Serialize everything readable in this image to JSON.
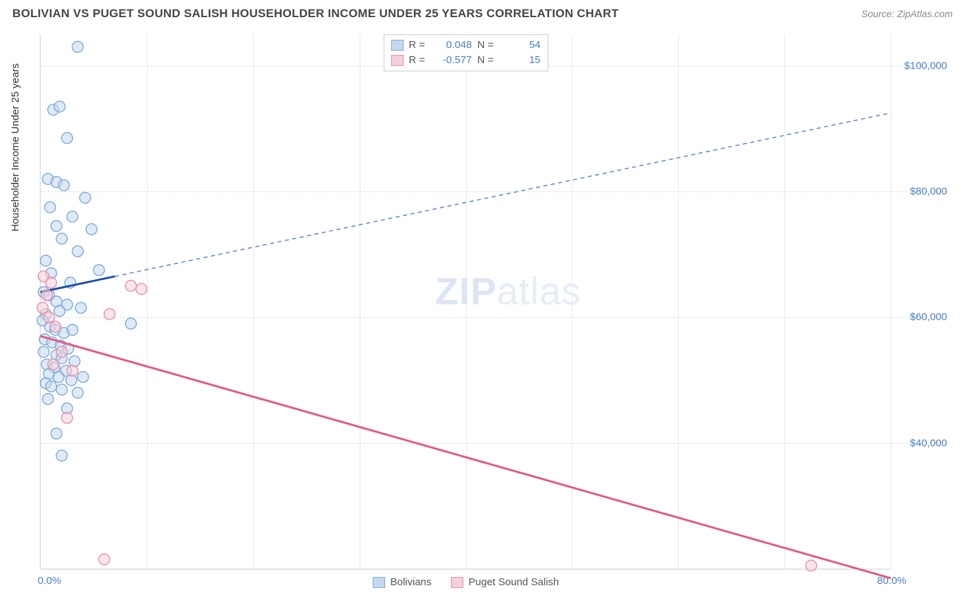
{
  "title": "BOLIVIAN VS PUGET SOUND SALISH HOUSEHOLDER INCOME UNDER 25 YEARS CORRELATION CHART",
  "source": "Source: ZipAtlas.com",
  "ylabel": "Householder Income Under 25 years",
  "watermark_a": "ZIP",
  "watermark_b": "atlas",
  "chart": {
    "type": "scatter",
    "background_color": "#ffffff",
    "grid_color": "#dddddd",
    "axis_color": "#cccccc",
    "text_color": "#4a7ec9",
    "xlim": [
      0,
      80
    ],
    "ylim": [
      20000,
      105000
    ],
    "xticks": [
      0,
      10,
      20,
      30,
      40,
      50,
      60,
      70,
      80
    ],
    "xtick_labels": {
      "0": "0.0%",
      "80": "80.0%"
    },
    "yticks": [
      40000,
      60000,
      80000,
      100000
    ],
    "ytick_labels": {
      "40000": "$40,000",
      "60000": "$60,000",
      "80000": "$80,000",
      "100000": "$100,000"
    },
    "series": [
      {
        "name": "Bolivians",
        "color_fill": "#c3d8ef",
        "color_stroke": "#7fa8d8",
        "marker_radius": 8,
        "R": "0.048",
        "N": "54",
        "trend": {
          "solid": {
            "x1": 0,
            "y1": 64000,
            "x2": 7,
            "y2": 66500,
            "color": "#1f4fa8",
            "width": 3
          },
          "dashed": {
            "x1": 7,
            "y1": 66500,
            "x2": 80,
            "y2": 92500,
            "color": "#5b84cf",
            "width": 1.5,
            "dash": "6 5"
          }
        },
        "points": [
          [
            3.5,
            103000
          ],
          [
            1.2,
            93000
          ],
          [
            1.8,
            93500
          ],
          [
            2.5,
            88500
          ],
          [
            0.7,
            82000
          ],
          [
            1.5,
            81500
          ],
          [
            2.2,
            81000
          ],
          [
            4.2,
            79000
          ],
          [
            0.9,
            77500
          ],
          [
            3.0,
            76000
          ],
          [
            1.5,
            74500
          ],
          [
            2.0,
            72500
          ],
          [
            4.8,
            74000
          ],
          [
            3.5,
            70500
          ],
          [
            0.5,
            69000
          ],
          [
            1.0,
            67000
          ],
          [
            5.5,
            67500
          ],
          [
            2.8,
            65500
          ],
          [
            0.3,
            64000
          ],
          [
            0.8,
            63500
          ],
          [
            1.5,
            62500
          ],
          [
            2.5,
            62000
          ],
          [
            0.5,
            60500
          ],
          [
            1.8,
            61000
          ],
          [
            3.8,
            61500
          ],
          [
            0.2,
            59500
          ],
          [
            0.9,
            58500
          ],
          [
            1.4,
            58000
          ],
          [
            2.2,
            57500
          ],
          [
            3.0,
            58000
          ],
          [
            8.5,
            59000
          ],
          [
            0.4,
            56500
          ],
          [
            1.1,
            56000
          ],
          [
            1.9,
            55500
          ],
          [
            2.6,
            55000
          ],
          [
            0.3,
            54500
          ],
          [
            1.5,
            54000
          ],
          [
            2.0,
            53500
          ],
          [
            3.2,
            53000
          ],
          [
            0.6,
            52500
          ],
          [
            1.3,
            52000
          ],
          [
            2.4,
            51500
          ],
          [
            0.8,
            51000
          ],
          [
            1.7,
            50500
          ],
          [
            2.9,
            50000
          ],
          [
            4.0,
            50500
          ],
          [
            0.5,
            49500
          ],
          [
            1.0,
            49000
          ],
          [
            2.0,
            48500
          ],
          [
            3.5,
            48000
          ],
          [
            0.7,
            47000
          ],
          [
            2.5,
            45500
          ],
          [
            1.5,
            41500
          ],
          [
            2.0,
            38000
          ]
        ]
      },
      {
        "name": "Puget Sound Salish",
        "color_fill": "#f5d0db",
        "color_stroke": "#e78fa9",
        "marker_radius": 8,
        "R": "-0.577",
        "N": "15",
        "trend": {
          "solid": {
            "x1": 0,
            "y1": 57000,
            "x2": 80,
            "y2": 18500,
            "color": "#e35a84",
            "width": 3
          }
        },
        "points": [
          [
            0.3,
            66500
          ],
          [
            1.0,
            65500
          ],
          [
            0.6,
            63500
          ],
          [
            0.2,
            61500
          ],
          [
            0.8,
            60000
          ],
          [
            1.4,
            58500
          ],
          [
            6.5,
            60500
          ],
          [
            8.5,
            65000
          ],
          [
            9.5,
            64500
          ],
          [
            2.0,
            54500
          ],
          [
            1.2,
            52500
          ],
          [
            3.0,
            51500
          ],
          [
            2.5,
            44000
          ],
          [
            6.0,
            21500
          ],
          [
            72.5,
            20500
          ]
        ]
      }
    ],
    "legend_bottom": [
      "Bolivians",
      "Puget Sound Salish"
    ]
  }
}
